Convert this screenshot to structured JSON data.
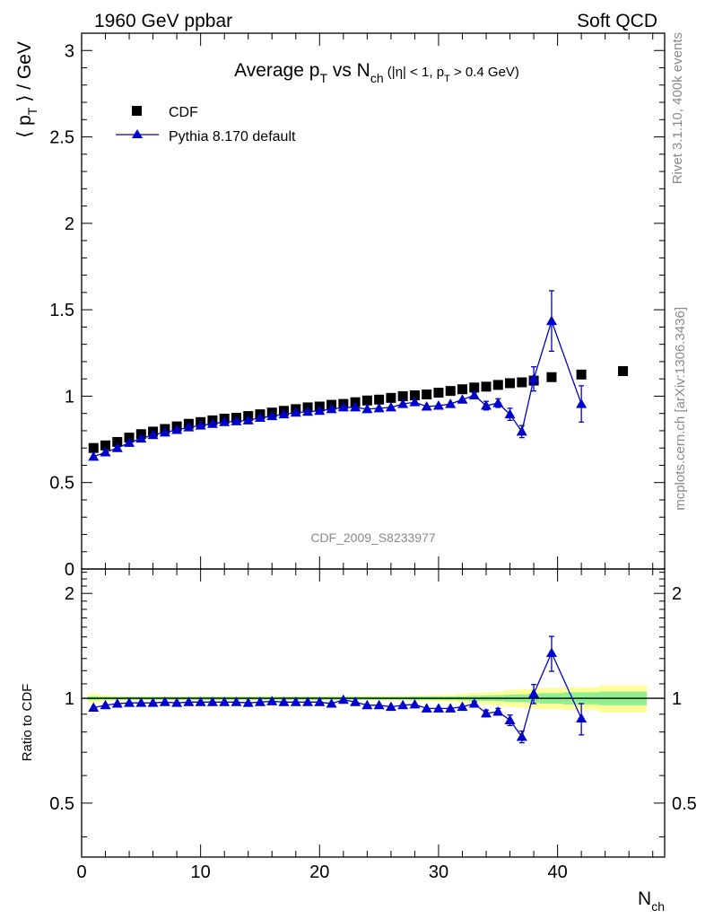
{
  "header": {
    "left": "1960 GeV ppbar",
    "right": "Soft QCD"
  },
  "side": {
    "rivet": "Rivet 3.1.10,  400k events",
    "mcplots": "mcplots.cern.ch [arXiv:1306.3436]"
  },
  "watermark": "CDF_2009_S8233977",
  "chart_data": [
    {
      "type": "scatter",
      "title": {
        "main": "Average p",
        "main_sub": "T",
        "vs": " vs N",
        "vs_sub": "ch",
        "cond_a": " (|η| < 1, p",
        "cond_sub": "T",
        "cond_b": " > 0.4 GeV)"
      },
      "ylabel": {
        "pre": "⟨ p",
        "sub": "T",
        "post": " ⟩ / GeV"
      },
      "ylim": [
        0,
        3.1
      ],
      "xlim": [
        0,
        49
      ],
      "yticks": [
        "0",
        "0.5",
        "1",
        "1.5",
        "2",
        "2.5",
        "3"
      ],
      "legend": {
        "position": "top-left",
        "entries": [
          "CDF",
          "Pythia 8.170 default"
        ]
      },
      "series": [
        {
          "name": "CDF",
          "marker": "square",
          "color": "#000000",
          "x": [
            1,
            2,
            3,
            4,
            5,
            6,
            7,
            8,
            9,
            10,
            11,
            12,
            13,
            14,
            15,
            16,
            17,
            18,
            19,
            20,
            21,
            22,
            23,
            24,
            25,
            26,
            27,
            28,
            29,
            30,
            31,
            32,
            33,
            34,
            35,
            36,
            37,
            38,
            39.5,
            42,
            45.5
          ],
          "y": [
            0.7,
            0.715,
            0.735,
            0.76,
            0.78,
            0.795,
            0.81,
            0.825,
            0.84,
            0.85,
            0.86,
            0.87,
            0.875,
            0.885,
            0.895,
            0.905,
            0.915,
            0.925,
            0.935,
            0.94,
            0.95,
            0.955,
            0.965,
            0.975,
            0.98,
            0.99,
            1.0,
            1.005,
            1.01,
            1.02,
            1.03,
            1.04,
            1.05,
            1.055,
            1.065,
            1.075,
            1.08,
            1.09,
            1.11,
            1.125,
            1.145
          ]
        },
        {
          "name": "Pythia 8.170 default",
          "marker": "triangle",
          "color": "#0000cc",
          "x": [
            1,
            2,
            3,
            4,
            5,
            6,
            7,
            8,
            9,
            10,
            11,
            12,
            13,
            14,
            15,
            16,
            17,
            18,
            19,
            20,
            21,
            22,
            23,
            24,
            25,
            26,
            27,
            28,
            29,
            30,
            31,
            32,
            33,
            34,
            35,
            36,
            37,
            38,
            39.5,
            42
          ],
          "y": [
            0.65,
            0.675,
            0.7,
            0.73,
            0.755,
            0.775,
            0.79,
            0.805,
            0.82,
            0.83,
            0.84,
            0.85,
            0.855,
            0.86,
            0.875,
            0.885,
            0.895,
            0.905,
            0.91,
            0.915,
            0.925,
            0.935,
            0.935,
            0.925,
            0.93,
            0.935,
            0.955,
            0.965,
            0.94,
            0.945,
            0.955,
            0.98,
            1.005,
            0.945,
            0.96,
            0.895,
            0.795,
            1.1,
            1.435,
            0.955
          ],
          "yerr": [
            0,
            0,
            0,
            0,
            0,
            0,
            0,
            0,
            0,
            0,
            0,
            0,
            0,
            0,
            0,
            0,
            0,
            0,
            0,
            0,
            0,
            0,
            0,
            0,
            0,
            0,
            0,
            0,
            0,
            0,
            0,
            0,
            0.015,
            0.025,
            0.025,
            0.035,
            0.035,
            0.07,
            0.175,
            0.105
          ]
        }
      ]
    },
    {
      "type": "scatter",
      "ylabel": "Ratio to CDF",
      "xlabel": {
        "main": "N",
        "sub": "ch"
      },
      "ylim": [
        0.35,
        2.35
      ],
      "xlim": [
        0,
        49
      ],
      "yticks": [
        "0.5",
        "1",
        "2"
      ],
      "xticks": [
        "0",
        "10",
        "20",
        "30",
        "40"
      ],
      "reference_line": 1,
      "bands": {
        "green_color": "#90f090",
        "yellow_color": "#ffff99",
        "x_edges": [
          0.5,
          1.5,
          2.5,
          3.5,
          4.5,
          5.5,
          6.5,
          7.5,
          8.5,
          9.5,
          10.5,
          11.5,
          12.5,
          13.5,
          14.5,
          15.5,
          16.5,
          17.5,
          18.5,
          19.5,
          20.5,
          21.5,
          22.5,
          23.5,
          24.5,
          25.5,
          26.5,
          27.5,
          28.5,
          29.5,
          30.5,
          31.5,
          32.5,
          33.5,
          34.5,
          35.5,
          36.5,
          37.5,
          38.5,
          40.5,
          43.5,
          47.5
        ],
        "green_halfwidth": [
          0.012,
          0.01,
          0.01,
          0.01,
          0.01,
          0.01,
          0.01,
          0.01,
          0.01,
          0.01,
          0.01,
          0.01,
          0.01,
          0.01,
          0.01,
          0.01,
          0.01,
          0.01,
          0.01,
          0.01,
          0.01,
          0.01,
          0.01,
          0.01,
          0.01,
          0.01,
          0.01,
          0.012,
          0.012,
          0.012,
          0.012,
          0.014,
          0.016,
          0.018,
          0.02,
          0.024,
          0.026,
          0.03,
          0.035,
          0.04,
          0.045
        ],
        "yellow_halfwidth": [
          0.03,
          0.02,
          0.015,
          0.015,
          0.015,
          0.015,
          0.015,
          0.015,
          0.015,
          0.015,
          0.015,
          0.015,
          0.015,
          0.015,
          0.015,
          0.015,
          0.015,
          0.015,
          0.015,
          0.015,
          0.015,
          0.015,
          0.015,
          0.015,
          0.015,
          0.015,
          0.015,
          0.018,
          0.02,
          0.022,
          0.025,
          0.03,
          0.035,
          0.04,
          0.045,
          0.055,
          0.06,
          0.065,
          0.07,
          0.075,
          0.09
        ]
      },
      "series": [
        {
          "name": "Pythia 8.170 default",
          "marker": "triangle",
          "color": "#0000cc",
          "x": [
            1,
            2,
            3,
            4,
            5,
            6,
            7,
            8,
            9,
            10,
            11,
            12,
            13,
            14,
            15,
            16,
            17,
            18,
            19,
            20,
            21,
            22,
            23,
            24,
            25,
            26,
            27,
            28,
            29,
            30,
            31,
            32,
            33,
            34,
            35,
            36,
            37,
            38,
            39.5,
            42
          ],
          "y": [
            0.94,
            0.955,
            0.965,
            0.97,
            0.97,
            0.97,
            0.975,
            0.97,
            0.975,
            0.975,
            0.975,
            0.975,
            0.975,
            0.97,
            0.975,
            0.98,
            0.975,
            0.975,
            0.975,
            0.975,
            0.965,
            0.99,
            0.975,
            0.955,
            0.955,
            0.945,
            0.955,
            0.96,
            0.935,
            0.935,
            0.935,
            0.945,
            0.965,
            0.905,
            0.915,
            0.865,
            0.775,
            1.03,
            1.35,
            0.875
          ],
          "yerr": [
            0,
            0,
            0,
            0,
            0,
            0,
            0,
            0,
            0,
            0,
            0,
            0,
            0,
            0,
            0,
            0,
            0,
            0,
            0,
            0,
            0,
            0,
            0,
            0,
            0,
            0,
            0,
            0,
            0,
            0,
            0,
            0,
            0.015,
            0.02,
            0.02,
            0.03,
            0.03,
            0.065,
            0.155,
            0.09
          ]
        }
      ]
    }
  ]
}
